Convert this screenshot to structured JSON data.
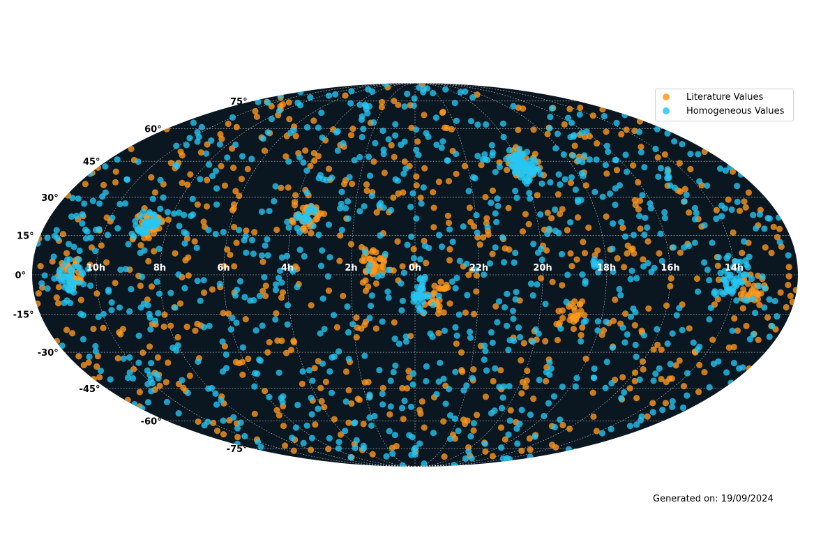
{
  "chart_data": {
    "type": "scatter",
    "projection": "mollweide",
    "title": "",
    "xlabel": "",
    "ylabel": "",
    "background_color": "#0a1620",
    "grid": true,
    "legend_placement": "top-right",
    "ra_tick_labels": [
      "14h",
      "16h",
      "18h",
      "20h",
      "22h",
      "0h",
      "2h",
      "4h",
      "6h",
      "8h",
      "10h"
    ],
    "ra_tick_hours": [
      14,
      16,
      18,
      20,
      22,
      0,
      2,
      4,
      6,
      8,
      10
    ],
    "dec_tick_labels": [
      "75°",
      "60°",
      "45°",
      "30°",
      "15°",
      "0°",
      "-15°",
      "-30°",
      "-45°",
      "-60°",
      "-75°"
    ],
    "dec_tick_degrees": [
      75,
      60,
      45,
      30,
      15,
      0,
      -15,
      -30,
      -45,
      -60,
      -75
    ],
    "series": [
      {
        "name": "Literature Values",
        "color": "#ff9a1f",
        "approx_count": 900,
        "clusters": [
          {
            "ra_h": 19.9,
            "dec": 44.5,
            "spread": 3.5,
            "count": 40
          },
          {
            "ra_h": 3.6,
            "dec": 23.5,
            "spread": 4,
            "count": 35
          },
          {
            "ra_h": 8.6,
            "dec": 19.5,
            "spread": 3.5,
            "count": 35
          },
          {
            "ra_h": 1.3,
            "dec": 4,
            "spread": 3,
            "count": 30
          },
          {
            "ra_h": 10.8,
            "dec": 0,
            "spread": 3,
            "count": 30
          },
          {
            "ra_h": 13.4,
            "dec": -7,
            "spread": 3,
            "count": 25
          },
          {
            "ra_h": 18.9,
            "dec": -16,
            "spread": 3,
            "count": 20
          },
          {
            "ra_h": 23.3,
            "dec": -9,
            "spread": 3,
            "count": 25
          }
        ]
      },
      {
        "name": "Homogeneous Values",
        "color": "#26c6f2",
        "approx_count": 1100,
        "clusters": [
          {
            "ra_h": 19.9,
            "dec": 43,
            "spread": 3,
            "count": 80
          },
          {
            "ra_h": 8.7,
            "dec": 19,
            "spread": 3,
            "count": 45
          },
          {
            "ra_h": 14.1,
            "dec": -3,
            "spread": 3.5,
            "count": 35
          },
          {
            "ra_h": 10.8,
            "dec": -1,
            "spread": 3,
            "count": 35
          },
          {
            "ra_h": 23.8,
            "dec": -7,
            "spread": 3,
            "count": 30
          },
          {
            "ra_h": 3.7,
            "dec": 22,
            "spread": 3,
            "count": 20
          },
          {
            "ra_h": 18.3,
            "dec": 4,
            "spread": 1.5,
            "count": 8
          }
        ]
      }
    ]
  },
  "legend": {
    "items": [
      {
        "label": "Literature Values",
        "color": "#ff9a1f"
      },
      {
        "label": "Homogeneous Values",
        "color": "#26c6f2"
      }
    ]
  },
  "footer": {
    "generated_text": "Generated on: 19/09/2024"
  }
}
